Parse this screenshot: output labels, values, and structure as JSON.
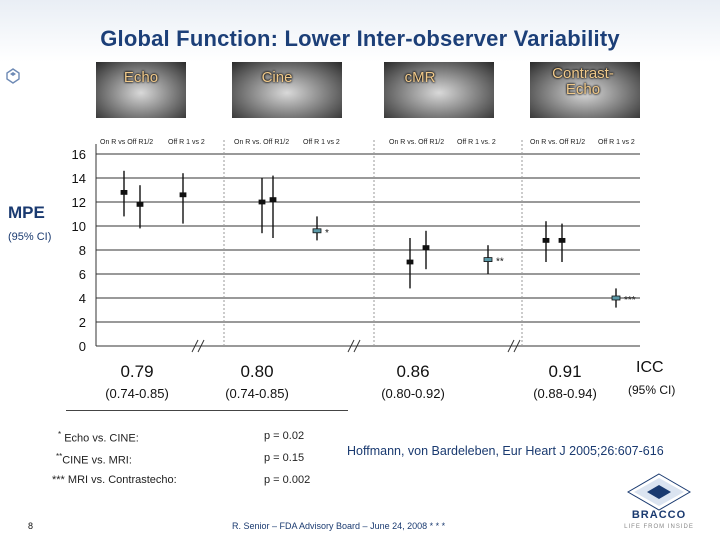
{
  "slide": {
    "title": "Global Function: Lower Inter-observer Variability",
    "footer": "R. Senior – FDA Advisory Board – June 24, 2008 * * *",
    "page_number": "8",
    "brand_name": "BRACCO",
    "brand_tagline": "LIFE FROM INSIDE",
    "citation": "Hoffmann, von Bardeleben, Eur Heart J 2005;26:607-616",
    "accent_color": "#1a3a70"
  },
  "modalities": [
    {
      "label": "Echo"
    },
    {
      "label": "Cine"
    },
    {
      "label": "cMR"
    },
    {
      "label": "Contrast-\nEcho"
    }
  ],
  "column_headers": [
    "On R vs Off R1/2",
    "Off R 1 vs 2",
    "On R vs. Off R1/2",
    "Off R 1 vs 2",
    "On R vs. Off R1/2",
    "Off R 1 vs. 2",
    "On R vs. Off R1/2",
    "Off R 1 vs 2"
  ],
  "y_axis": {
    "label": "MPE",
    "sublabel": "(95% CI)",
    "ticks": [
      "16",
      "14",
      "12",
      "10",
      "8",
      "6",
      "4",
      "2",
      "0"
    ]
  },
  "icc": {
    "header": "ICC",
    "header_sub": "(95% CI)",
    "values": [
      {
        "value": "0.79",
        "ci": "(0.74-0.85)"
      },
      {
        "value": "0.80",
        "ci": "(0.74-0.85)"
      },
      {
        "value": "0.86",
        "ci": "(0.80-0.92)"
      },
      {
        "value": "0.91",
        "ci": "(0.88-0.94)"
      }
    ]
  },
  "notes": [
    {
      "mark": "*",
      "text": "Echo  vs. CINE:",
      "p": "p = 0.02"
    },
    {
      "mark": "**",
      "text": "CINE vs. MRI:",
      "p": "p = 0.15"
    },
    {
      "mark": "***",
      "text": "MRI vs. Contrastecho:",
      "p": "p = 0.002"
    }
  ],
  "chart_data": {
    "type": "scatter",
    "ylabel": "MPE",
    "ylim": [
      0,
      16
    ],
    "grid": true,
    "points": [
      {
        "group": "Echo",
        "series": "On R vs Off R1/2",
        "center": 12.8,
        "low": 10.8,
        "high": 14.6
      },
      {
        "group": "Echo",
        "series": "On R vs Off R1/2",
        "center": 11.8,
        "low": 9.8,
        "high": 13.4
      },
      {
        "group": "Echo",
        "series": "Off R 1 vs 2",
        "center": 12.6,
        "low": 10.2,
        "high": 14.4
      },
      {
        "group": "Cine",
        "series": "On R vs. Off R1/2",
        "center": 12.0,
        "low": 9.4,
        "high": 14.0
      },
      {
        "group": "Cine",
        "series": "On R vs. Off R1/2",
        "center": 12.2,
        "low": 9.0,
        "high": 14.2
      },
      {
        "group": "Cine",
        "series": "Off R 1 vs 2",
        "center": 9.6,
        "low": 8.8,
        "high": 10.8,
        "annotation": "*"
      },
      {
        "group": "cMR",
        "series": "On R vs. Off R1/2",
        "center": 7.0,
        "low": 4.8,
        "high": 9.0
      },
      {
        "group": "cMR",
        "series": "On R vs. Off R1/2",
        "center": 8.2,
        "low": 6.4,
        "high": 9.6
      },
      {
        "group": "cMR",
        "series": "Off R 1 vs. 2",
        "center": 7.2,
        "low": 6.0,
        "high": 8.4,
        "annotation": "**"
      },
      {
        "group": "Contrast-Echo",
        "series": "On R vs. Off R1/2",
        "center": 8.8,
        "low": 7.0,
        "high": 10.4
      },
      {
        "group": "Contrast-Echo",
        "series": "On R vs. Off R1/2",
        "center": 8.8,
        "low": 7.0,
        "high": 10.2
      },
      {
        "group": "Contrast-Echo",
        "series": "Off R 1 vs 2",
        "center": 4.0,
        "low": 3.2,
        "high": 4.8,
        "annotation": "***"
      }
    ]
  }
}
